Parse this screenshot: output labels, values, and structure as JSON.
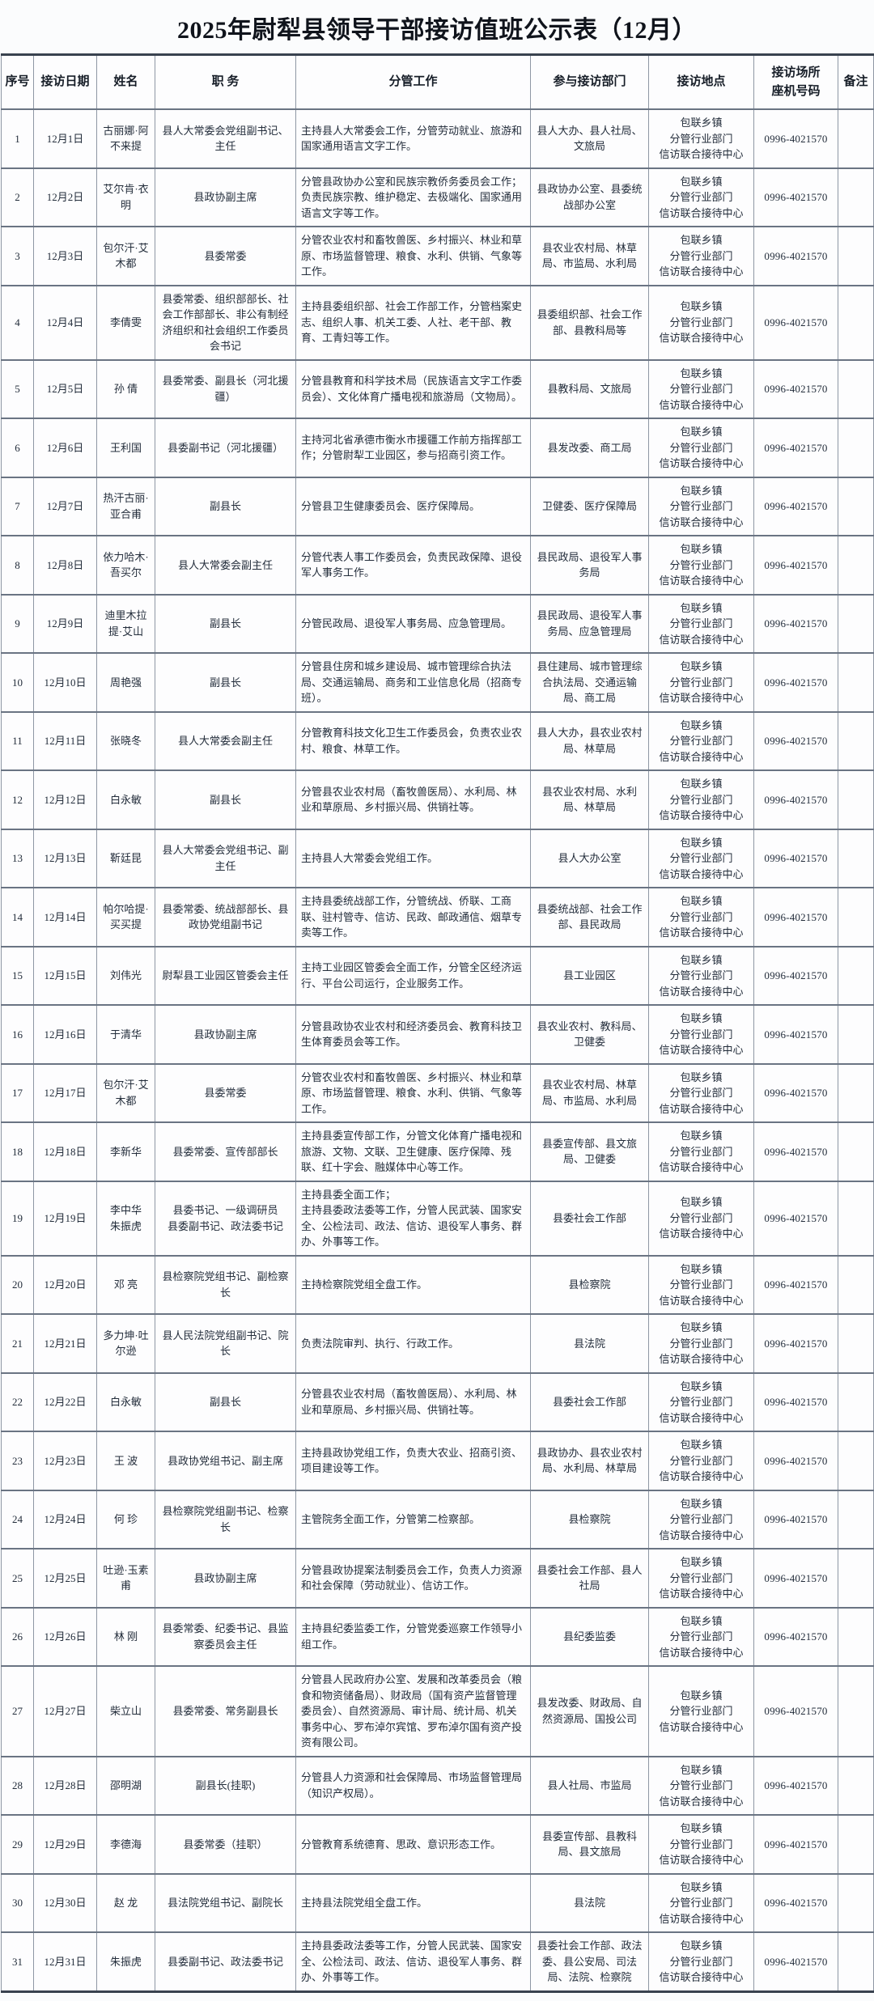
{
  "title": "2025年尉犁县领导干部接访值班公示表（12月）",
  "columns": [
    {
      "key": "num",
      "label": "序号"
    },
    {
      "key": "date",
      "label": "接访日期"
    },
    {
      "key": "name",
      "label": "姓名"
    },
    {
      "key": "position",
      "label": "职 务"
    },
    {
      "key": "work",
      "label": "分管工作"
    },
    {
      "key": "departments",
      "label": "参与接访部门"
    },
    {
      "key": "location",
      "label": "接访地点"
    },
    {
      "key": "phone",
      "label": "接访场所\n座机号码"
    },
    {
      "key": "note",
      "label": "备注"
    }
  ],
  "rows": [
    {
      "num": "1",
      "date": "12月1日",
      "name": "古丽娜·阿不来提",
      "position": "县人大常委会党组副书记、主任",
      "work": "主持县人大常委会工作，分管劳动就业、旅游和国家通用语言文字工作。",
      "departments": "县人大办、县人社局、文旅局",
      "location": "包联乡镇\n分管行业部门\n信访联合接待中心",
      "phone": "0996-4021570",
      "note": ""
    },
    {
      "num": "2",
      "date": "12月2日",
      "name": "艾尔肯·衣明",
      "position": "县政协副主席",
      "work": "分管县政协办公室和民族宗教侨务委员会工作；负责民族宗教、维护稳定、去极端化、国家通用语言文字等工作。",
      "departments": "县政协办公室、县委统战部办公室",
      "location": "包联乡镇\n分管行业部门\n信访联合接待中心",
      "phone": "0996-4021570",
      "note": ""
    },
    {
      "num": "3",
      "date": "12月3日",
      "name": "包尔汗·艾木都",
      "position": "县委常委",
      "work": "分管农业农村和畜牧兽医、乡村振兴、林业和草原、市场监督管理、粮食、水利、供销、气象等工作。",
      "departments": "县农业农村局、林草局、市监局、水利局",
      "location": "包联乡镇\n分管行业部门\n信访联合接待中心",
      "phone": "0996-4021570",
      "note": ""
    },
    {
      "num": "4",
      "date": "12月4日",
      "name": "李倩雯",
      "position": "县委常委、组织部部长、社会工作部部长、非公有制经济组织和社会组织工作委员会书记",
      "work": "主持县委组织部、社会工作部工作，分管档案史志、组织人事、机关工委、人社、老干部、教育、工青妇等工作。",
      "departments": "县委组织部、社会工作部、县教科局等",
      "location": "包联乡镇\n分管行业部门\n信访联合接待中心",
      "phone": "0996-4021570",
      "note": ""
    },
    {
      "num": "5",
      "date": "12月5日",
      "name": "孙 倩",
      "position": "县委常委、副县长（河北援疆）",
      "work": "分管县教育和科学技术局（民族语言文字工作委员会）、文化体育广播电视和旅游局（文物局）。",
      "departments": "县教科局、文旅局",
      "location": "包联乡镇\n分管行业部门\n信访联合接待中心",
      "phone": "0996-4021570",
      "note": ""
    },
    {
      "num": "6",
      "date": "12月6日",
      "name": "王利国",
      "position": "县委副书记（河北援疆）",
      "work": "主持河北省承德市衡水市援疆工作前方指挥部工作；分管尉犁工业园区，参与招商引资工作。",
      "departments": "县发改委、商工局",
      "location": "包联乡镇\n分管行业部门\n信访联合接待中心",
      "phone": "0996-4021570",
      "note": ""
    },
    {
      "num": "7",
      "date": "12月7日",
      "name": "热汗古丽·亚合甫",
      "position": "副县长",
      "work": "分管县卫生健康委员会、医疗保障局。",
      "departments": "卫健委、医疗保障局",
      "location": "包联乡镇\n分管行业部门\n信访联合接待中心",
      "phone": "0996-4021570",
      "note": ""
    },
    {
      "num": "8",
      "date": "12月8日",
      "name": "依力哈木·吾买尔",
      "position": "县人大常委会副主任",
      "work": "分管代表人事工作委员会，负责民政保障、退役军人事务工作。",
      "departments": "县民政局、退役军人事务局",
      "location": "包联乡镇\n分管行业部门\n信访联合接待中心",
      "phone": "0996-4021570",
      "note": ""
    },
    {
      "num": "9",
      "date": "12月9日",
      "name": "迪里木拉提·艾山",
      "position": "副县长",
      "work": "分管民政局、退役军人事务局、应急管理局。",
      "departments": "县民政局、退役军人事务局、应急管理局",
      "location": "包联乡镇\n分管行业部门\n信访联合接待中心",
      "phone": "0996-4021570",
      "note": ""
    },
    {
      "num": "10",
      "date": "12月10日",
      "name": "周艳强",
      "position": "副县长",
      "work": "分管县住房和城乡建设局、城市管理综合执法局、交通运输局、商务和工业信息化局（招商专班）。",
      "departments": "县住建局、城市管理综合执法局、交通运输局、商工局",
      "location": "包联乡镇\n分管行业部门\n信访联合接待中心",
      "phone": "0996-4021570",
      "note": ""
    },
    {
      "num": "11",
      "date": "12月11日",
      "name": "张晓冬",
      "position": "县人大常委会副主任",
      "work": "分管教育科技文化卫生工作委员会，负责农业农村、粮食、林草工作。",
      "departments": "县人大办，县农业农村局、林草局",
      "location": "包联乡镇\n分管行业部门\n信访联合接待中心",
      "phone": "0996-4021570",
      "note": ""
    },
    {
      "num": "12",
      "date": "12月12日",
      "name": "白永敏",
      "position": "副县长",
      "work": "分管县农业农村局（畜牧兽医局）、水利局、林业和草原局、乡村振兴局、供销社等。",
      "departments": "县农业农村局、水利局、林草局",
      "location": "包联乡镇\n分管行业部门\n信访联合接待中心",
      "phone": "0996-4021570",
      "note": ""
    },
    {
      "num": "13",
      "date": "12月13日",
      "name": "靳廷昆",
      "position": "县人大常委会党组书记、副主任",
      "work": "主持县人大常委会党组工作。",
      "departments": "县人大办公室",
      "location": "包联乡镇\n分管行业部门\n信访联合接待中心",
      "phone": "0996-4021570",
      "note": ""
    },
    {
      "num": "14",
      "date": "12月14日",
      "name": "帕尔哈提·买买提",
      "position": "县委常委、统战部部长、县政协党组副书记",
      "work": "主持县委统战部工作，分管统战、侨联、工商联、驻村管寺、信访、民政、邮政通信、烟草专卖等工作。",
      "departments": "县委统战部、社会工作部、县民政局",
      "location": "包联乡镇\n分管行业部门\n信访联合接待中心",
      "phone": "0996-4021570",
      "note": ""
    },
    {
      "num": "15",
      "date": "12月15日",
      "name": "刘伟光",
      "position": "尉犁县工业园区管委会主任",
      "work": "主持工业园区管委会全面工作，分管全区经济运行、平台公司运行，企业服务工作。",
      "departments": "县工业园区",
      "location": "包联乡镇\n分管行业部门\n信访联合接待中心",
      "phone": "0996-4021570",
      "note": ""
    },
    {
      "num": "16",
      "date": "12月16日",
      "name": "于清华",
      "position": "县政协副主席",
      "work": "分管县政协农业农村和经济委员会、教育科技卫生体育委员会等工作。",
      "departments": "县农业农村、教科局、卫健委",
      "location": "包联乡镇\n分管行业部门\n信访联合接待中心",
      "phone": "0996-4021570",
      "note": ""
    },
    {
      "num": "17",
      "date": "12月17日",
      "name": "包尔汗·艾木都",
      "position": "县委常委",
      "work": "分管农业农村和畜牧兽医、乡村振兴、林业和草原、市场监督管理、粮食、水利、供销、气象等工作。",
      "departments": "县农业农村局、林草局、市监局、水利局",
      "location": "包联乡镇\n分管行业部门\n信访联合接待中心",
      "phone": "0996-4021570",
      "note": ""
    },
    {
      "num": "18",
      "date": "12月18日",
      "name": "李新华",
      "position": "县委常委、宣传部部长",
      "work": "主持县委宣传部工作，分管文化体育广播电视和旅游、文物、文联、卫生健康、医疗保障、残联、红十字会、融媒体中心等工作。",
      "departments": "县委宣传部、县文旅局、卫健委",
      "location": "包联乡镇\n分管行业部门\n信访联合接待中心",
      "phone": "0996-4021570",
      "note": ""
    },
    {
      "num": "19",
      "date": "12月19日",
      "name": "李中华\n朱振虎",
      "position": "县委书记、一级调研员\n县委副书记、政法委书记",
      "work": "主持县委全面工作；\n主持县委政法委等工作，分管人民武装、国家安全、公检法司、政法、信访、退役军人事务、群办、外事等工作。",
      "departments": "县委社会工作部",
      "location": "包联乡镇\n分管行业部门\n信访联合接待中心",
      "phone": "0996-4021570",
      "note": ""
    },
    {
      "num": "20",
      "date": "12月20日",
      "name": "邓 亮",
      "position": "县检察院党组书记、副检察长",
      "work": "主持检察院党组全盘工作。",
      "departments": "县检察院",
      "location": "包联乡镇\n分管行业部门\n信访联合接待中心",
      "phone": "0996-4021570",
      "note": ""
    },
    {
      "num": "21",
      "date": "12月21日",
      "name": "多力坤·吐尔逊",
      "position": "县人民法院党组副书记、院长",
      "work": "负责法院审判、执行、行政工作。",
      "departments": "县法院",
      "location": "包联乡镇\n分管行业部门\n信访联合接待中心",
      "phone": "0996-4021570",
      "note": ""
    },
    {
      "num": "22",
      "date": "12月22日",
      "name": "白永敏",
      "position": "副县长",
      "work": "分管县农业农村局（畜牧兽医局）、水利局、林业和草原局、乡村振兴局、供销社等。",
      "departments": "县委社会工作部",
      "location": "包联乡镇\n分管行业部门\n信访联合接待中心",
      "phone": "0996-4021570",
      "note": ""
    },
    {
      "num": "23",
      "date": "12月23日",
      "name": "王 波",
      "position": "县政协党组书记、副主席",
      "work": "主持县政协党组工作，负责大农业、招商引资、项目建设等工作。",
      "departments": "县政协办、县农业农村局、水利局、林草局",
      "location": "包联乡镇\n分管行业部门\n信访联合接待中心",
      "phone": "0996-4021570",
      "note": ""
    },
    {
      "num": "24",
      "date": "12月24日",
      "name": "何 珍",
      "position": "县检察院党组副书记、检察长",
      "work": "主管院务全面工作，分管第二检察部。",
      "departments": "县检察院",
      "location": "包联乡镇\n分管行业部门\n信访联合接待中心",
      "phone": "0996-4021570",
      "note": ""
    },
    {
      "num": "25",
      "date": "12月25日",
      "name": "吐逊·玉素甫",
      "position": "县政协副主席",
      "work": "分管县政协提案法制委员会工作，负责人力资源和社会保障（劳动就业）、信访工作。",
      "departments": "县委社会工作部、县人社局",
      "location": "包联乡镇\n分管行业部门\n信访联合接待中心",
      "phone": "0996-4021570",
      "note": ""
    },
    {
      "num": "26",
      "date": "12月26日",
      "name": "林 刚",
      "position": "县委常委、纪委书记、县监察委员会主任",
      "work": "主持县纪委监委工作，分管党委巡察工作领导小组工作。",
      "departments": "县纪委监委",
      "location": "包联乡镇\n分管行业部门\n信访联合接待中心",
      "phone": "0996-4021570",
      "note": ""
    },
    {
      "num": "27",
      "date": "12月27日",
      "name": "柴立山",
      "position": "县委常委、常务副县长",
      "work": "分管县人民政府办公室、发展和改革委员会（粮食和物资储备局）、财政局（国有资产监督管理委员会）、自然资源局、审计局、统计局、机关事务中心、罗布淖尔宾馆、罗布淖尔国有资产投资有限公司。",
      "departments": "县发改委、财政局、自然资源局、国投公司",
      "location": "包联乡镇\n分管行业部门\n信访联合接待中心",
      "phone": "0996-4021570",
      "note": ""
    },
    {
      "num": "28",
      "date": "12月28日",
      "name": "邵明湖",
      "position": "副县长(挂职)",
      "work": "分管县人力资源和社会保障局、市场监督管理局（知识产权局）。",
      "departments": "县人社局、市监局",
      "location": "包联乡镇\n分管行业部门\n信访联合接待中心",
      "phone": "0996-4021570",
      "note": ""
    },
    {
      "num": "29",
      "date": "12月29日",
      "name": "李德海",
      "position": "县委常委（挂职）",
      "work": "分管教育系统德育、思政、意识形态工作。",
      "departments": "县委宣传部、县教科局、县文旅局",
      "location": "包联乡镇\n分管行业部门\n信访联合接待中心",
      "phone": "0996-4021570",
      "note": ""
    },
    {
      "num": "30",
      "date": "12月30日",
      "name": "赵 龙",
      "position": "县法院党组书记、副院长",
      "work": "主持县法院党组全盘工作。",
      "departments": "县法院",
      "location": "包联乡镇\n分管行业部门\n信访联合接待中心",
      "phone": "0996-4021570",
      "note": ""
    },
    {
      "num": "31",
      "date": "12月31日",
      "name": "朱振虎",
      "position": "县委副书记、政法委书记",
      "work": "主持县委政法委等工作，分管人民武装、国家安全、公检法司、政法、信访、退役军人事务、群办、外事等工作。",
      "departments": "县委社会工作部、政法委、县公安局、司法局、法院、检察院",
      "location": "包联乡镇\n分管行业部门\n信访联合接待中心",
      "phone": "0996-4021570",
      "note": ""
    }
  ]
}
